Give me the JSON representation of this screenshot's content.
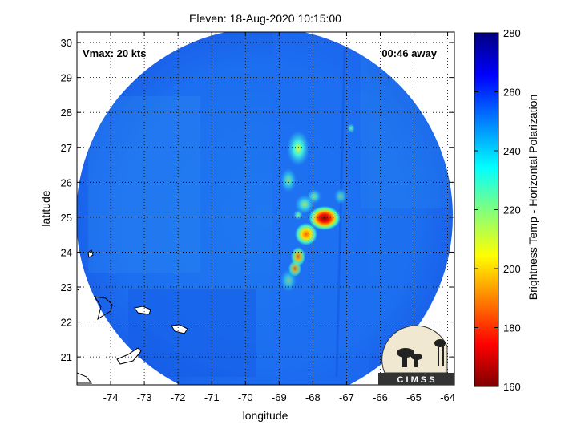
{
  "chart_data": {
    "type": "heatmap",
    "title": "Eleven: 18-Aug-2020 10:15:00",
    "xlabel": "longitude",
    "ylabel": "latitude",
    "x_ticks": [
      -74,
      -73,
      -72,
      -71,
      -70,
      -69,
      -68,
      -67,
      -66,
      -65,
      -64
    ],
    "y_ticks": [
      21,
      22,
      23,
      24,
      25,
      26,
      27,
      28,
      29,
      30
    ],
    "xlim": [
      -75,
      -63.8
    ],
    "ylim": [
      20.2,
      30.3
    ],
    "grid": true,
    "colorbar": {
      "label": "Brightness Temp - Horizontal Polarization",
      "ticks": [
        160,
        180,
        200,
        220,
        240,
        260,
        280
      ],
      "range": [
        160,
        280
      ]
    },
    "annotations": {
      "vmax": "Vmax: 20 kts",
      "time_away": "00:46 away"
    },
    "storm_center": {
      "lon": -67.6,
      "lat": 25.05,
      "min_value": 165
    },
    "background_value": 255,
    "logo_text": "C I M S S"
  },
  "colors": {
    "scale": [
      "#7f0000",
      "#ff0000",
      "#ffff00",
      "#00ffff",
      "#0000ff",
      "#00007f"
    ],
    "frame": "#000000"
  }
}
